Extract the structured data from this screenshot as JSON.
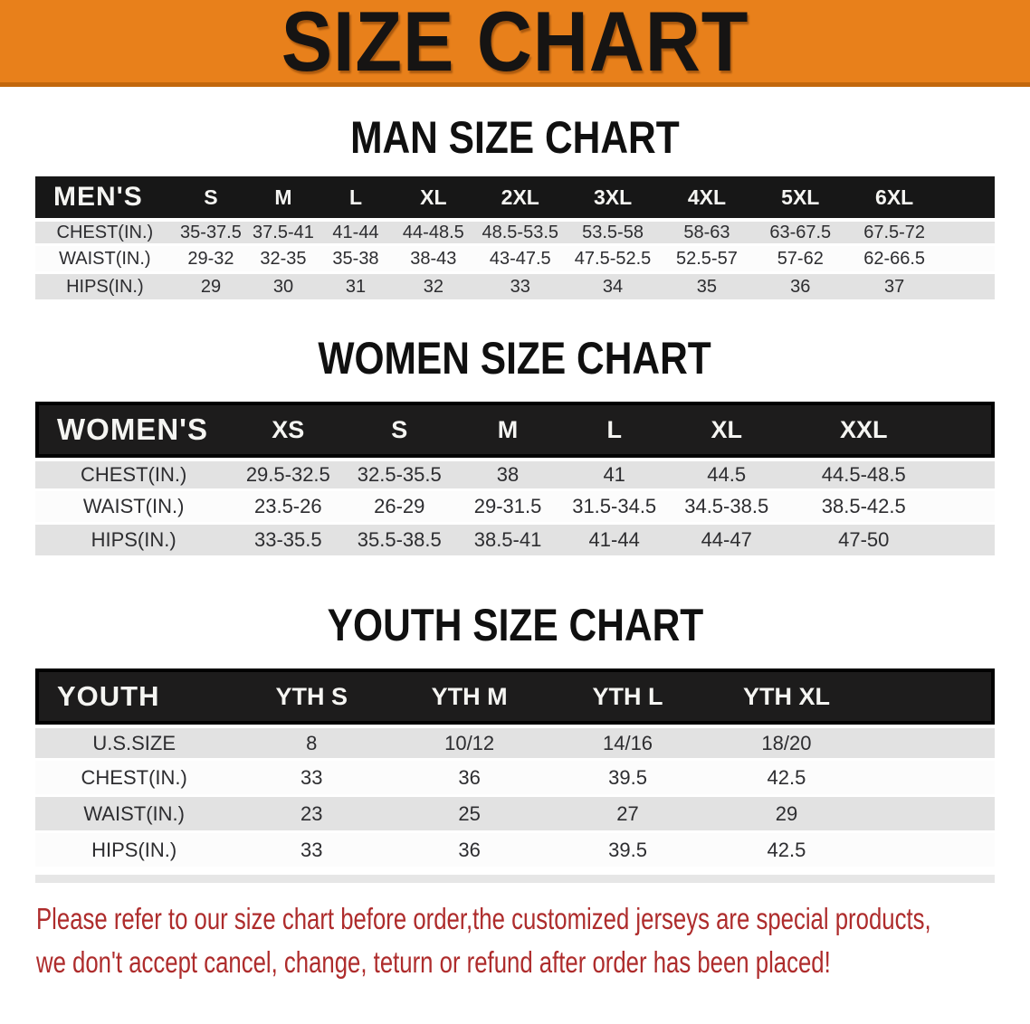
{
  "banner": {
    "title": "SIZE CHART"
  },
  "colors": {
    "banner_bg": "#E8801B",
    "banner_edge": "#C2670D",
    "table_header_bg": "#171717",
    "row_gray": "#E2E2E2",
    "row_white": "#FCFCFC",
    "disclaimer_red": "#AE2C2C"
  },
  "sections": [
    {
      "id": "men",
      "heading": "MAN SIZE CHART",
      "columns": [
        "MEN'S",
        "S",
        "M",
        "L",
        "XL",
        "2XL",
        "3XL",
        "4XL",
        "5XL",
        "6XL"
      ],
      "rows": [
        {
          "label": "CHEST(IN.)",
          "values": [
            "35-37.5",
            "37.5-41",
            "41-44",
            "44-48.5",
            "48.5-53.5",
            "53.5-58",
            "58-63",
            "63-67.5",
            "67.5-72"
          ]
        },
        {
          "label": "WAIST(IN.)",
          "values": [
            "29-32",
            "32-35",
            "35-38",
            "38-43",
            "43-47.5",
            "47.5-52.5",
            "52.5-57",
            "57-62",
            "62-66.5"
          ]
        },
        {
          "label": "HIPS(IN.)",
          "values": [
            "29",
            "30",
            "31",
            "32",
            "33",
            "34",
            "35",
            "36",
            "37"
          ]
        }
      ]
    },
    {
      "id": "women",
      "heading": "WOMEN SIZE CHART",
      "columns": [
        "WOMEN'S",
        "XS",
        "S",
        "M",
        "L",
        "XL",
        "XXL"
      ],
      "rows": [
        {
          "label": "CHEST(IN.)",
          "values": [
            "29.5-32.5",
            "32.5-35.5",
            "38",
            "41",
            "44.5",
            "44.5-48.5"
          ]
        },
        {
          "label": "WAIST(IN.)",
          "values": [
            "23.5-26",
            "26-29",
            "29-31.5",
            "31.5-34.5",
            "34.5-38.5",
            "38.5-42.5"
          ]
        },
        {
          "label": "HIPS(IN.)",
          "values": [
            "33-35.5",
            "35.5-38.5",
            "38.5-41",
            "41-44",
            "44-47",
            "47-50"
          ]
        }
      ]
    },
    {
      "id": "youth",
      "heading": "YOUTH SIZE CHART",
      "columns": [
        "YOUTH",
        "YTH S",
        "YTH M",
        "YTH L",
        "YTH XL"
      ],
      "rows": [
        {
          "label": "U.S.SIZE",
          "values": [
            "8",
            "10/12",
            "14/16",
            "18/20"
          ]
        },
        {
          "label": "CHEST(IN.)",
          "values": [
            "33",
            "36",
            "39.5",
            "42.5"
          ]
        },
        {
          "label": "WAIST(IN.)",
          "values": [
            "23",
            "25",
            "27",
            "29"
          ]
        },
        {
          "label": "HIPS(IN.)",
          "values": [
            "33",
            "36",
            "39.5",
            "42.5"
          ]
        }
      ]
    }
  ],
  "disclaimer": {
    "lines": [
      "Please refer to our size chart before order,the customized jerseys are special products,",
      "we don't accept cancel, change, teturn or refund after order has been placed!"
    ]
  }
}
